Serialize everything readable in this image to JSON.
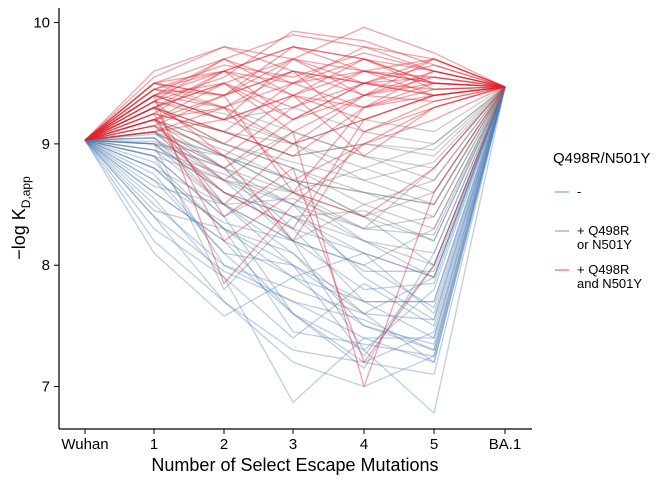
{
  "chart_data": {
    "type": "line",
    "title": "",
    "xlabel": "Number of Select Escape Mutations",
    "ylabel": "−log K",
    "ylabel_subscript": "D,app",
    "categories": [
      "Wuhan",
      "1",
      "2",
      "3",
      "4",
      "5",
      "BA.1"
    ],
    "yticks": [
      7,
      8,
      9,
      10
    ],
    "ylim": [
      6.65,
      10.12
    ],
    "grid": false,
    "legend": {
      "title": "Q498R/N501Y",
      "placement": "right",
      "entries": [
        {
          "label_lines": [
            "-"
          ],
          "color": "#4E7FB5"
        },
        {
          "label_lines": [
            "+ Q498R",
            "or N501Y"
          ],
          "color": "#7A7A7A"
        },
        {
          "label_lines": [
            "+ Q498R",
            "and N501Y"
          ],
          "color": "#E0212E"
        }
      ]
    },
    "series": [
      {
        "group": "neither",
        "values": [
          9.03,
          9.0,
          8.6,
          8.3,
          7.7,
          7.4,
          9.47
        ]
      },
      {
        "group": "neither",
        "values": [
          9.03,
          8.9,
          8.4,
          7.6,
          7.2,
          7.1,
          9.47
        ]
      },
      {
        "group": "neither",
        "values": [
          9.03,
          9.05,
          8.7,
          8.5,
          7.9,
          7.55,
          9.47
        ]
      },
      {
        "group": "neither",
        "values": [
          9.03,
          8.7,
          8.1,
          7.6,
          7.3,
          6.78,
          9.47
        ]
      },
      {
        "group": "neither",
        "values": [
          9.03,
          8.55,
          7.9,
          6.87,
          7.4,
          7.2,
          9.47
        ]
      },
      {
        "group": "neither",
        "values": [
          9.03,
          8.8,
          8.3,
          7.9,
          7.5,
          7.3,
          9.47
        ]
      },
      {
        "group": "neither",
        "values": [
          9.03,
          9.1,
          8.8,
          8.5,
          8.2,
          7.9,
          9.47
        ]
      },
      {
        "group": "neither",
        "values": [
          9.03,
          8.4,
          7.7,
          7.2,
          7.0,
          7.25,
          9.47
        ]
      },
      {
        "group": "neither",
        "values": [
          9.03,
          8.1,
          7.58,
          7.9,
          8.1,
          7.6,
          9.47
        ]
      },
      {
        "group": "neither",
        "values": [
          9.03,
          8.95,
          8.5,
          8.2,
          7.3,
          7.8,
          9.47
        ]
      },
      {
        "group": "neither",
        "values": [
          9.03,
          8.6,
          8.2,
          7.6,
          7.15,
          8.1,
          9.47
        ]
      },
      {
        "group": "neither",
        "values": [
          9.03,
          8.3,
          7.9,
          7.4,
          7.85,
          7.5,
          9.47
        ]
      },
      {
        "group": "neither",
        "values": [
          9.03,
          9.0,
          8.9,
          8.7,
          8.4,
          8.0,
          9.47
        ]
      },
      {
        "group": "neither",
        "values": [
          9.03,
          8.75,
          8.1,
          8.0,
          7.7,
          7.7,
          9.47
        ]
      },
      {
        "group": "neither",
        "values": [
          9.03,
          8.65,
          8.5,
          8.1,
          7.5,
          7.35,
          9.47
        ]
      },
      {
        "group": "neither",
        "values": [
          9.03,
          8.85,
          8.3,
          7.45,
          7.35,
          7.25,
          9.47
        ]
      },
      {
        "group": "neither",
        "values": [
          9.03,
          9.0,
          8.6,
          8.4,
          7.95,
          7.95,
          9.47
        ]
      },
      {
        "group": "neither",
        "values": [
          9.03,
          8.5,
          8.0,
          7.8,
          7.6,
          7.55,
          9.47
        ]
      },
      {
        "group": "neither",
        "values": [
          9.03,
          8.2,
          7.7,
          7.3,
          7.2,
          7.45,
          9.47
        ]
      },
      {
        "group": "neither",
        "values": [
          9.03,
          8.95,
          8.7,
          8.2,
          7.8,
          7.85,
          9.47
        ]
      },
      {
        "group": "neither",
        "values": [
          9.03,
          8.7,
          8.35,
          8.2,
          8.0,
          7.65,
          9.47
        ]
      },
      {
        "group": "neither",
        "values": [
          9.03,
          8.4,
          7.95,
          7.7,
          7.55,
          7.3,
          9.47
        ]
      },
      {
        "group": "neither",
        "values": [
          9.03,
          9.08,
          8.9,
          8.6,
          8.3,
          8.25,
          9.47
        ]
      },
      {
        "group": "neither",
        "values": [
          9.03,
          8.8,
          8.5,
          8.0,
          7.25,
          8.0,
          9.47
        ]
      },
      {
        "group": "neither",
        "values": [
          9.03,
          8.6,
          8.2,
          7.9,
          7.7,
          7.7,
          9.47
        ]
      },
      {
        "group": "neither",
        "values": [
          9.03,
          8.9,
          8.0,
          7.7,
          7.4,
          7.4,
          9.47
        ]
      },
      {
        "group": "neither",
        "values": [
          9.03,
          9.02,
          8.8,
          8.3,
          8.1,
          7.9,
          9.47
        ]
      },
      {
        "group": "neither",
        "values": [
          9.03,
          8.45,
          8.3,
          8.0,
          7.6,
          7.2,
          9.47
        ]
      },
      {
        "group": "one",
        "values": [
          9.03,
          9.1,
          8.9,
          8.6,
          8.4,
          8.2,
          9.47
        ]
      },
      {
        "group": "one",
        "values": [
          9.03,
          9.2,
          9.0,
          8.8,
          8.6,
          8.4,
          9.47
        ]
      },
      {
        "group": "one",
        "values": [
          9.03,
          8.9,
          8.7,
          8.4,
          8.1,
          7.9,
          9.47
        ]
      },
      {
        "group": "one",
        "values": [
          9.03,
          9.3,
          9.1,
          9.0,
          8.8,
          8.6,
          9.47
        ]
      },
      {
        "group": "one",
        "values": [
          9.03,
          9.0,
          8.5,
          8.2,
          8.5,
          8.3,
          9.47
        ]
      },
      {
        "group": "one",
        "values": [
          9.03,
          9.4,
          9.2,
          9.0,
          8.7,
          8.5,
          9.47
        ]
      },
      {
        "group": "one",
        "values": [
          9.03,
          8.8,
          8.3,
          8.1,
          7.6,
          7.9,
          9.47
        ]
      },
      {
        "group": "one",
        "values": [
          9.03,
          9.2,
          8.8,
          9.1,
          8.9,
          8.7,
          9.47
        ]
      },
      {
        "group": "one",
        "values": [
          9.03,
          9.05,
          8.6,
          8.4,
          8.2,
          8.1,
          9.47
        ]
      },
      {
        "group": "one",
        "values": [
          9.03,
          9.5,
          9.3,
          9.1,
          8.9,
          8.8,
          9.47
        ]
      },
      {
        "group": "one",
        "values": [
          9.03,
          9.0,
          7.8,
          8.4,
          8.45,
          8.2,
          9.47
        ]
      },
      {
        "group": "one",
        "values": [
          9.03,
          9.15,
          8.95,
          8.7,
          8.6,
          8.5,
          9.47
        ]
      },
      {
        "group": "one",
        "values": [
          9.03,
          9.25,
          9.1,
          8.9,
          9.0,
          8.9,
          9.47
        ]
      },
      {
        "group": "one",
        "values": [
          9.03,
          8.95,
          8.75,
          8.5,
          8.3,
          8.4,
          9.47
        ]
      },
      {
        "group": "one",
        "values": [
          9.03,
          9.3,
          9.0,
          8.8,
          8.5,
          8.7,
          9.47
        ]
      },
      {
        "group": "one",
        "values": [
          9.03,
          9.1,
          8.7,
          8.6,
          8.8,
          9.0,
          9.47
        ]
      },
      {
        "group": "one",
        "values": [
          9.03,
          9.4,
          9.2,
          9.3,
          9.1,
          9.0,
          9.47
        ]
      },
      {
        "group": "one",
        "values": [
          9.03,
          9.0,
          8.8,
          8.2,
          8.0,
          8.3,
          9.47
        ]
      },
      {
        "group": "one",
        "values": [
          9.03,
          9.2,
          8.9,
          8.7,
          8.4,
          8.6,
          9.47
        ]
      },
      {
        "group": "one",
        "values": [
          9.03,
          9.05,
          8.5,
          8.55,
          8.3,
          8.8,
          9.47
        ]
      },
      {
        "group": "one",
        "values": [
          9.03,
          9.35,
          9.25,
          9.0,
          9.2,
          9.1,
          9.47
        ]
      },
      {
        "group": "one",
        "values": [
          9.03,
          8.9,
          8.4,
          8.7,
          8.6,
          8.5,
          9.47
        ]
      },
      {
        "group": "one",
        "values": [
          9.03,
          9.2,
          9.0,
          8.85,
          8.7,
          8.85,
          9.47
        ]
      },
      {
        "group": "one",
        "values": [
          9.03,
          9.1,
          8.8,
          8.6,
          8.2,
          8.0,
          9.47
        ]
      },
      {
        "group": "one",
        "values": [
          9.03,
          9.3,
          9.1,
          8.9,
          9.0,
          8.95,
          9.47
        ]
      },
      {
        "group": "both",
        "values": [
          9.03,
          9.4,
          9.6,
          9.8,
          9.7,
          9.6,
          9.47
        ]
      },
      {
        "group": "both",
        "values": [
          9.03,
          9.5,
          9.7,
          9.9,
          9.8,
          9.7,
          9.47
        ]
      },
      {
        "group": "both",
        "values": [
          9.03,
          9.2,
          9.4,
          9.6,
          9.5,
          9.4,
          9.47
        ]
      },
      {
        "group": "both",
        "values": [
          9.03,
          9.6,
          9.8,
          9.7,
          9.96,
          9.75,
          9.47
        ]
      },
      {
        "group": "both",
        "values": [
          9.03,
          9.3,
          9.5,
          9.2,
          9.4,
          9.5,
          9.47
        ]
      },
      {
        "group": "both",
        "values": [
          9.03,
          9.1,
          9.2,
          9.4,
          9.6,
          9.5,
          9.47
        ]
      },
      {
        "group": "both",
        "values": [
          9.03,
          9.35,
          9.55,
          9.93,
          9.85,
          9.65,
          9.47
        ]
      },
      {
        "group": "both",
        "values": [
          9.03,
          9.45,
          9.3,
          9.5,
          9.3,
          9.4,
          9.47
        ]
      },
      {
        "group": "both",
        "values": [
          9.03,
          9.2,
          8.9,
          9.3,
          9.5,
          9.55,
          9.47
        ]
      },
      {
        "group": "both",
        "values": [
          9.03,
          9.25,
          9.6,
          9.4,
          9.7,
          9.45,
          9.47
        ]
      },
      {
        "group": "both",
        "values": [
          9.03,
          9.5,
          9.4,
          9.6,
          9.1,
          9.3,
          9.47
        ]
      },
      {
        "group": "both",
        "values": [
          9.03,
          9.15,
          8.7,
          9.1,
          9.4,
          9.6,
          9.47
        ]
      },
      {
        "group": "both",
        "values": [
          9.03,
          9.4,
          9.7,
          9.5,
          9.6,
          9.4,
          9.47
        ]
      },
      {
        "group": "both",
        "values": [
          9.03,
          9.3,
          9.1,
          8.9,
          9.3,
          9.5,
          9.47
        ]
      },
      {
        "group": "both",
        "values": [
          9.03,
          9.55,
          9.8,
          9.6,
          9.5,
          9.7,
          9.47
        ]
      },
      {
        "group": "both",
        "values": [
          9.03,
          9.2,
          8.5,
          9.0,
          9.2,
          9.4,
          9.47
        ]
      },
      {
        "group": "both",
        "values": [
          9.03,
          9.35,
          9.2,
          9.7,
          9.4,
          9.35,
          9.47
        ]
      },
      {
        "group": "both",
        "values": [
          9.03,
          9.1,
          9.3,
          8.7,
          9.0,
          9.2,
          9.47
        ]
      },
      {
        "group": "both",
        "values": [
          9.03,
          9.45,
          9.6,
          9.8,
          9.7,
          9.5,
          9.47
        ]
      },
      {
        "group": "both",
        "values": [
          9.03,
          9.25,
          8.2,
          8.6,
          9.3,
          9.45,
          9.47
        ]
      },
      {
        "group": "both",
        "values": [
          9.03,
          9.4,
          9.5,
          9.3,
          9.6,
          9.55,
          9.47
        ]
      },
      {
        "group": "both",
        "values": [
          9.03,
          9.3,
          9.0,
          9.4,
          8.9,
          9.3,
          9.47
        ]
      },
      {
        "group": "both",
        "values": [
          9.03,
          9.5,
          9.6,
          9.5,
          9.8,
          9.6,
          9.47
        ]
      },
      {
        "group": "both",
        "values": [
          9.03,
          9.15,
          8.8,
          9.2,
          9.5,
          9.4,
          9.47
        ]
      },
      {
        "group": "both",
        "values": [
          9.03,
          9.4,
          9.3,
          9.6,
          9.4,
          9.7,
          9.47
        ]
      },
      {
        "group": "both",
        "values": [
          9.03,
          9.2,
          9.5,
          9.1,
          7.0,
          8.6,
          9.47
        ]
      },
      {
        "group": "both",
        "values": [
          9.03,
          9.3,
          8.4,
          8.8,
          7.2,
          8.0,
          9.47
        ]
      },
      {
        "group": "both",
        "values": [
          9.03,
          9.45,
          9.4,
          9.7,
          9.6,
          9.5,
          9.47
        ]
      },
      {
        "group": "both",
        "values": [
          9.03,
          9.1,
          8.6,
          8.3,
          9.2,
          9.4,
          9.47
        ]
      },
      {
        "group": "both",
        "values": [
          9.03,
          9.35,
          9.7,
          9.4,
          9.3,
          9.6,
          9.47
        ]
      },
      {
        "group": "both",
        "values": [
          9.03,
          9.25,
          9.1,
          9.5,
          9.7,
          9.5,
          9.47
        ]
      },
      {
        "group": "both",
        "values": [
          9.03,
          9.4,
          7.85,
          8.5,
          9.0,
          9.3,
          9.47
        ]
      },
      {
        "group": "both",
        "values": [
          9.03,
          9.3,
          9.6,
          9.2,
          9.5,
          9.45,
          9.47
        ]
      },
      {
        "group": "both",
        "values": [
          9.03,
          9.5,
          9.4,
          9.8,
          9.6,
          9.7,
          9.47
        ]
      },
      {
        "group": "both",
        "values": [
          9.03,
          9.2,
          9.3,
          9.0,
          9.4,
          9.55,
          9.47
        ]
      },
      {
        "group": "both",
        "values": [
          9.03,
          9.35,
          8.9,
          8.2,
          9.1,
          9.35,
          9.47
        ]
      },
      {
        "group": "both",
        "values": [
          9.03,
          9.45,
          9.65,
          9.55,
          9.75,
          9.6,
          9.47
        ]
      },
      {
        "group": "both",
        "values": [
          9.03,
          9.15,
          9.4,
          8.6,
          8.4,
          8.8,
          9.47
        ]
      },
      {
        "group": "both",
        "values": [
          9.03,
          9.3,
          9.5,
          9.7,
          9.5,
          9.65,
          9.47
        ]
      },
      {
        "group": "both",
        "values": [
          9.03,
          9.4,
          9.2,
          9.4,
          9.2,
          9.4,
          9.47
        ]
      }
    ],
    "group_colors": {
      "neither": "#4E7FB5",
      "one": "#7A7A7A",
      "both": "#E0212E"
    }
  }
}
